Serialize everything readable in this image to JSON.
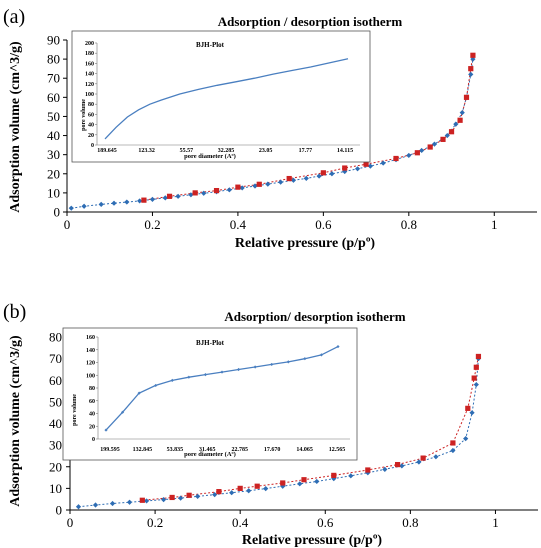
{
  "chart_data": [
    {
      "panel": "(a)",
      "type": "scatter",
      "title": "Adsorption / desorption isotherm",
      "xlabel": "Relative pressure (p/pº)",
      "ylabel": "Adsorption volume (cm^3/g)",
      "xlim": [
        0,
        1.1
      ],
      "ylim": [
        0,
        90
      ],
      "xticks": [
        "0",
        "0.2",
        "0.4",
        "0.6",
        "0.8",
        "1"
      ],
      "yticks": [
        "0",
        "10",
        "20",
        "30",
        "40",
        "50",
        "60",
        "70",
        "80",
        "90"
      ],
      "grid": false,
      "colors": {
        "adsorption": "#2e6db4",
        "desorption": "#cc2222"
      },
      "series": [
        {
          "marker": "diamond",
          "color": "#2e6db4",
          "x": [
            0.01,
            0.04,
            0.08,
            0.11,
            0.14,
            0.17,
            0.2,
            0.23,
            0.26,
            0.29,
            0.32,
            0.35,
            0.38,
            0.41,
            0.44,
            0.47,
            0.5,
            0.53,
            0.56,
            0.59,
            0.62,
            0.65,
            0.68,
            0.71,
            0.74,
            0.77,
            0.8,
            0.83,
            0.86,
            0.89,
            0.91,
            0.925,
            0.935,
            0.945,
            0.95
          ],
          "y": [
            2,
            3,
            4,
            4.6,
            5.2,
            5.8,
            6.6,
            7.4,
            8.2,
            9,
            9.8,
            10.6,
            11.6,
            12.6,
            13.6,
            14.6,
            15.6,
            16.6,
            17.6,
            18.8,
            20,
            21.2,
            22.6,
            24,
            25.6,
            27.4,
            29.6,
            32.2,
            35.5,
            40,
            46,
            52,
            60,
            72,
            80
          ]
        },
        {
          "marker": "square",
          "color": "#cc2222",
          "x": [
            0.95,
            0.945,
            0.935,
            0.92,
            0.9,
            0.88,
            0.85,
            0.82,
            0.77,
            0.7,
            0.65,
            0.6,
            0.52,
            0.45,
            0.4,
            0.35,
            0.3,
            0.24,
            0.18
          ],
          "y": [
            82,
            75,
            60,
            48,
            42,
            38,
            34,
            31,
            28,
            25,
            23,
            20.5,
            17.5,
            14.5,
            13,
            11.2,
            10,
            8.2,
            6.2
          ]
        }
      ],
      "inset": {
        "type": "line",
        "title": "BJH-Plot",
        "xlabel": "pore diameter (Aº)",
        "ylabel": "pore volume",
        "ylim": [
          0,
          200
        ],
        "yticks": [
          "0",
          "20",
          "40",
          "60",
          "80",
          "100",
          "120",
          "140",
          "160",
          "180",
          "200"
        ],
        "categories": [
          "189.645",
          "123.32",
          "55.57",
          "32.285",
          "23.05",
          "17.77",
          "14.115"
        ],
        "series": [
          {
            "color": "#4a7fc0",
            "x": [
              0,
              0.3,
              0.6,
              0.9,
              1.2,
              1.5,
              2,
              2.5,
              3,
              3.5,
              4,
              4.5,
              5,
              5.5,
              6,
              6.5
            ],
            "y": [
              12,
              35,
              55,
              69,
              80,
              88,
              100,
              109,
              117,
              124,
              131,
              139,
              146,
              153,
              161,
              169
            ]
          }
        ]
      }
    },
    {
      "panel": "(b)",
      "type": "scatter",
      "title": "Adsorption/ desorption isotherm",
      "xlabel": "Relative pressure (p/pº)",
      "ylabel": "Adsorption volume (cm^3/g)",
      "xlim": [
        0,
        1.1
      ],
      "ylim": [
        0,
        80
      ],
      "xticks": [
        "0",
        "0.2",
        "0.4",
        "0.6",
        "0.8",
        "1"
      ],
      "yticks": [
        "0",
        "10",
        "20",
        "30",
        "40",
        "50",
        "60",
        "70",
        "80"
      ],
      "grid": false,
      "colors": {
        "adsorption": "#2e6db4",
        "desorption": "#cc2222"
      },
      "series": [
        {
          "marker": "diamond",
          "color": "#2e6db4",
          "x": [
            0.02,
            0.06,
            0.1,
            0.14,
            0.18,
            0.22,
            0.26,
            0.3,
            0.34,
            0.38,
            0.42,
            0.46,
            0.5,
            0.54,
            0.58,
            0.62,
            0.66,
            0.7,
            0.74,
            0.78,
            0.82,
            0.86,
            0.9,
            0.93,
            0.945,
            0.955,
            0.96
          ],
          "y": [
            1.5,
            2.3,
            3,
            3.6,
            4.2,
            4.8,
            5.5,
            6.3,
            7.1,
            8,
            8.9,
            9.9,
            11,
            12.1,
            13.2,
            14.5,
            15.8,
            17.2,
            18.8,
            20.4,
            22.2,
            24.6,
            27.5,
            33,
            45,
            58,
            70
          ]
        },
        {
          "marker": "square",
          "color": "#cc2222",
          "x": [
            0.96,
            0.955,
            0.95,
            0.935,
            0.9,
            0.83,
            0.77,
            0.7,
            0.62,
            0.55,
            0.5,
            0.44,
            0.4,
            0.35,
            0.28,
            0.24,
            0.17
          ],
          "y": [
            71,
            66,
            61,
            47,
            31,
            24,
            21,
            18.5,
            16,
            14,
            12.5,
            11,
            10,
            8.5,
            6.8,
            5.8,
            4.5
          ]
        }
      ],
      "inset": {
        "type": "line",
        "title": "BJH-Plot",
        "xlabel": "pore diameter (Aº)",
        "ylabel": "pore volume",
        "ylim": [
          0,
          160
        ],
        "yticks": [
          "0",
          "20",
          "40",
          "60",
          "80",
          "100",
          "120",
          "140",
          "160"
        ],
        "categories": [
          "199.595",
          "132.845",
          "53.835",
          "31.465",
          "22.785",
          "17.670",
          "14.065",
          "12.565"
        ],
        "series": [
          {
            "color": "#4a7fc0",
            "x": [
              0,
              0.5,
              1,
              1.5,
              2,
              2.5,
              3,
              3.5,
              4,
              4.5,
              5,
              5.5,
              6,
              6.5,
              7
            ],
            "y": [
              14,
              42,
              72,
              84,
              92,
              97,
              101,
              105,
              109,
              113,
              117,
              121,
              126,
              132,
              145
            ]
          }
        ]
      }
    }
  ]
}
